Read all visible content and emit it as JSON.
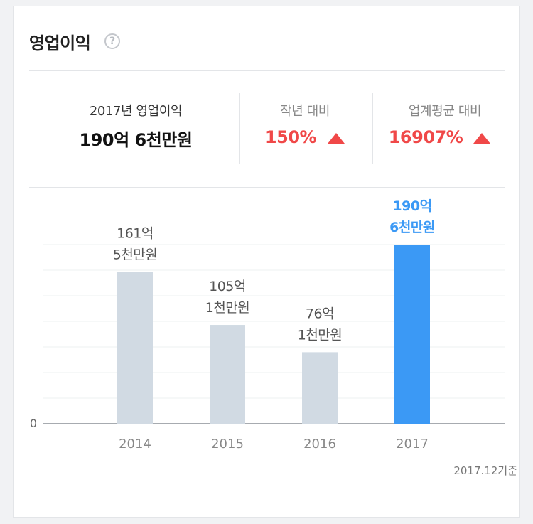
{
  "header": {
    "title": "영업이익",
    "help_icon": "question-circle-icon",
    "help_glyph": "?"
  },
  "summary": {
    "main": {
      "label": "2017년 영업이익",
      "value": "190억 6천만원"
    },
    "yoy": {
      "label": "작년 대비",
      "value": "150%",
      "icon": "triangle-up-icon"
    },
    "industry": {
      "label": "업계평균 대비",
      "value": "16907%",
      "icon": "triangle-up-icon"
    }
  },
  "colors": {
    "accent": "#3b99f5",
    "bar": "#d1dae3",
    "up": "#f04848"
  },
  "chart_data": {
    "type": "bar",
    "categories": [
      "2014",
      "2015",
      "2016",
      "2017"
    ],
    "values": [
      161.5,
      105.1,
      76.1,
      190.6
    ],
    "unit": "억",
    "data_labels": [
      [
        "161억",
        "5천만원"
      ],
      [
        "105억",
        "1천만원"
      ],
      [
        "76억",
        "1천만원"
      ],
      [
        "190억",
        "6천만원"
      ]
    ],
    "highlight_index": 3,
    "y_tick_labels": [
      "0"
    ],
    "ylim": [
      0,
      190.6
    ],
    "grid": true,
    "gridlines": 7
  },
  "footer": {
    "basis": "2017.12기준"
  }
}
